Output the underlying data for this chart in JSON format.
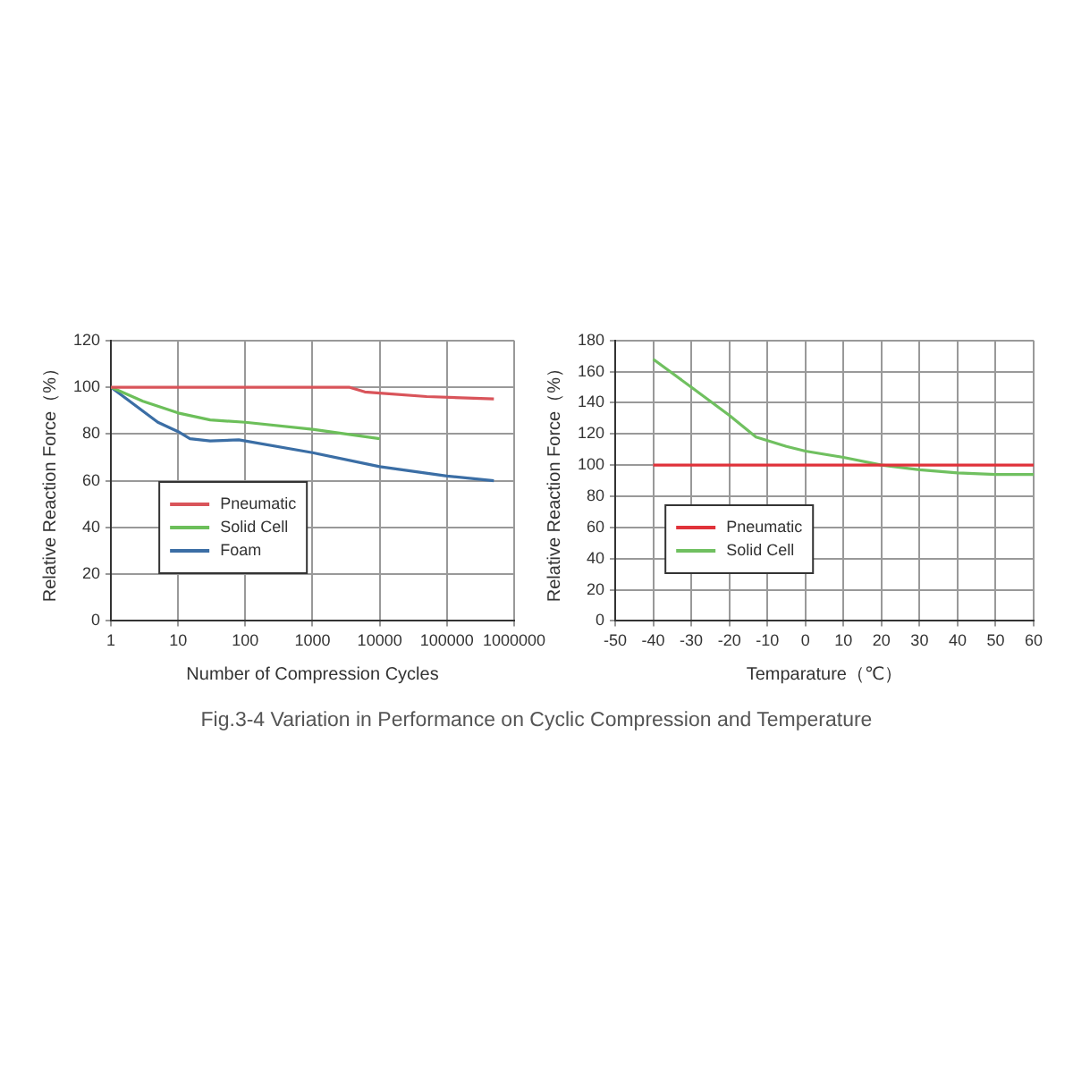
{
  "chart_data": [
    {
      "type": "line",
      "ylabel": "Relative Reaction Force（%）",
      "xlabel": "Number of Compression Cycles",
      "log": "x",
      "xlim": [
        1,
        1000000
      ],
      "xticks": [
        1,
        10,
        100,
        1000,
        10000,
        100000,
        1000000
      ],
      "ylim": [
        0,
        120
      ],
      "yticks": [
        0,
        20,
        40,
        60,
        80,
        100,
        120
      ],
      "grid": true,
      "legend": "bottom left",
      "marker": "none",
      "line_style": "solid",
      "annotations": [
        "Fig.3-4  Variation in Performance on Cyclic Compression and Temperature"
      ],
      "series": [
        {
          "name": "Pneumatic",
          "color": "#d9545a",
          "x": [
            1,
            3500,
            6000,
            10000,
            50000,
            500000
          ],
          "values": [
            100,
            100,
            98,
            97.5,
            96,
            95
          ]
        },
        {
          "name": "Solid Cell",
          "color": "#6cbf5a",
          "x": [
            1,
            3,
            10,
            30,
            100,
            1000,
            10000
          ],
          "values": [
            100,
            94,
            89,
            86,
            85,
            82,
            78
          ]
        },
        {
          "name": "Foam",
          "color": "#3b6ea5",
          "x": [
            1,
            5,
            10,
            15,
            30,
            80,
            1000,
            10000,
            100000,
            500000
          ],
          "values": [
            100,
            85,
            81,
            78,
            77,
            77.5,
            72,
            66,
            62,
            60
          ]
        }
      ]
    },
    {
      "type": "line",
      "ylabel": "Relative Reaction Force（%）",
      "xlabel": "Temparature（℃）",
      "xlim": [
        -50,
        60
      ],
      "xticks": [
        -50,
        -40,
        -30,
        -20,
        -10,
        0,
        10,
        20,
        30,
        40,
        50,
        60
      ],
      "ylim": [
        0,
        180
      ],
      "yticks": [
        0,
        20,
        40,
        60,
        80,
        100,
        120,
        140,
        160,
        180
      ],
      "grid": true,
      "legend": "bottom left",
      "marker": "none",
      "line_style": "solid",
      "series": [
        {
          "name": "Pneumatic",
          "color": "#e0323a",
          "x": [
            -40,
            60
          ],
          "values": [
            100,
            100
          ]
        },
        {
          "name": "Solid Cell",
          "color": "#70c060",
          "x": [
            -40,
            -30,
            -20,
            -13,
            -5,
            0,
            10,
            20,
            30,
            40,
            50,
            60
          ],
          "values": [
            168,
            150,
            132,
            118,
            112,
            109,
            105,
            100,
            97,
            95,
            94,
            94
          ]
        }
      ]
    }
  ]
}
